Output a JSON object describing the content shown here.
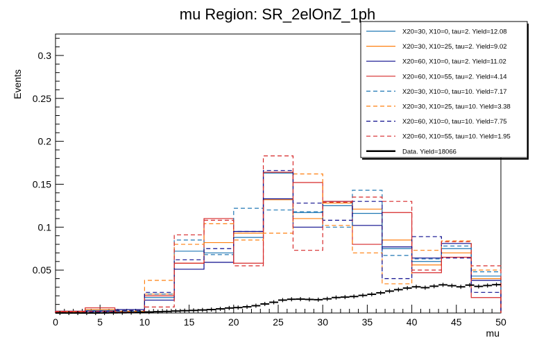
{
  "chart_data": {
    "type": "line",
    "title": "mu Region: SR_2elOnZ_1ph",
    "xlabel": "mu",
    "ylabel": "Events",
    "xlim": [
      0,
      50
    ],
    "ylim": [
      0,
      0.325
    ],
    "bin_edges": [
      0,
      3.33,
      6.67,
      10,
      13.33,
      16.67,
      20,
      23.33,
      26.67,
      30,
      33.33,
      36.67,
      40,
      43.33,
      46.67,
      50
    ],
    "x_ticks": [
      "0",
      "5",
      "10",
      "15",
      "20",
      "25",
      "30",
      "35",
      "40",
      "45",
      "50"
    ],
    "y_ticks": [
      "0.05",
      "0.1",
      "0.15",
      "0.2",
      "0.25",
      "0.3"
    ],
    "y_tick_values": [
      0.05,
      0.1,
      0.15,
      0.2,
      0.25,
      0.3
    ],
    "series": [
      {
        "name": "X20=30, X10=0, tau=2. Yield=12.08",
        "color": "#1f77b4",
        "dashed": false,
        "values": [
          0.002,
          0.003,
          0.004,
          0.018,
          0.072,
          0.07,
          0.088,
          0.163,
          0.117,
          0.125,
          0.116,
          0.075,
          0.06,
          0.075,
          0.043
        ]
      },
      {
        "name": "X20=30, X10=25, tau=2. Yield=9.02",
        "color": "#ff7f0e",
        "dashed": false,
        "values": [
          0.001,
          0.004,
          0.002,
          0.022,
          0.058,
          0.082,
          0.093,
          0.132,
          0.11,
          0.128,
          0.121,
          0.085,
          0.056,
          0.07,
          0.04
        ]
      },
      {
        "name": "X20=60, X10=0, tau=2. Yield=11.02",
        "color": "#0a0a8c",
        "dashed": false,
        "values": [
          0.002,
          0.002,
          0.004,
          0.015,
          0.051,
          0.059,
          0.095,
          0.133,
          0.1,
          0.13,
          0.102,
          0.077,
          0.064,
          0.081,
          0.038
        ]
      },
      {
        "name": "X20=60, X10=55, tau=2. Yield=4.14",
        "color": "#d62728",
        "dashed": false,
        "values": [
          0.002,
          0.006,
          0.001,
          0.02,
          0.058,
          0.11,
          0.058,
          0.164,
          0.152,
          0.13,
          0.08,
          0.117,
          0.047,
          0.065,
          0.018
        ]
      },
      {
        "name": "X20=30, X10=0, tau=10. Yield=7.17",
        "color": "#1f77b4",
        "dashed": true,
        "values": [
          0.001,
          0.001,
          0.002,
          0.022,
          0.085,
          0.068,
          0.122,
          0.12,
          0.118,
          0.1,
          0.143,
          0.067,
          0.063,
          0.078,
          0.048
        ]
      },
      {
        "name": "X20=30, X10=25, tau=10. Yield=3.38",
        "color": "#ff7f0e",
        "dashed": true,
        "values": [
          0.001,
          0.002,
          0.003,
          0.038,
          0.08,
          0.104,
          0.085,
          0.093,
          0.162,
          0.102,
          0.07,
          0.034,
          0.073,
          0.084,
          0.05
        ]
      },
      {
        "name": "X20=60, X10=0, tau=10. Yield=7.75",
        "color": "#0a0a8c",
        "dashed": true,
        "values": [
          0.001,
          0.001,
          0.003,
          0.024,
          0.062,
          0.075,
          0.095,
          0.166,
          0.128,
          0.108,
          0.13,
          0.04,
          0.089,
          0.064,
          0.024
        ]
      },
      {
        "name": "X20=60, X10=55, tau=10. Yield=1.95",
        "color": "#d62728",
        "dashed": true,
        "values": [
          0.001,
          0.002,
          0.001,
          0.007,
          0.091,
          0.108,
          0.055,
          0.183,
          0.073,
          0.129,
          0.135,
          0.13,
          0.05,
          0.083,
          0.055
        ]
      }
    ],
    "data_series": {
      "name": "Data. Yield=18066",
      "color": "#000000",
      "x": [
        0.5,
        1.5,
        2.5,
        3.5,
        4.5,
        5.5,
        6.5,
        7.5,
        8.5,
        9.5,
        10.5,
        11.5,
        12.5,
        13.5,
        14.5,
        15.5,
        16.5,
        17.5,
        18.5,
        19.5,
        20.5,
        21.5,
        22.5,
        23.5,
        24.5,
        25.5,
        26.5,
        27.5,
        28.5,
        29.5,
        30.5,
        31.5,
        32.5,
        33.5,
        34.5,
        35.5,
        36.5,
        37.5,
        38.5,
        39.5,
        40.5,
        41.5,
        42.5,
        43.5,
        44.5,
        45.5,
        46.5,
        47.5,
        48.5,
        49.5
      ],
      "values": [
        0.0,
        0.0,
        0.0,
        0.0,
        0.0,
        0.0001,
        0.0002,
        0.0003,
        0.0005,
        0.0008,
        0.0012,
        0.0015,
        0.0018,
        0.0023,
        0.0027,
        0.003,
        0.0035,
        0.004,
        0.0048,
        0.0058,
        0.0063,
        0.0072,
        0.0085,
        0.0105,
        0.0125,
        0.015,
        0.016,
        0.0162,
        0.0158,
        0.0155,
        0.0165,
        0.018,
        0.0185,
        0.0192,
        0.0205,
        0.0218,
        0.0235,
        0.0255,
        0.0272,
        0.029,
        0.0305,
        0.0295,
        0.0312,
        0.0328,
        0.0318,
        0.0305,
        0.0325,
        0.031,
        0.032,
        0.033
      ]
    }
  }
}
